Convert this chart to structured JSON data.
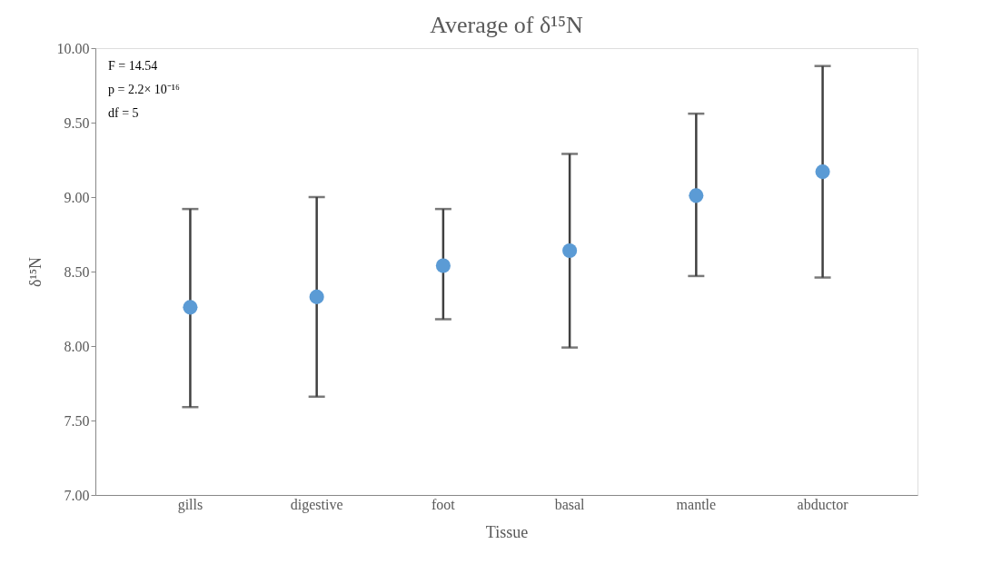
{
  "chart_data": {
    "type": "scatter",
    "title": "Average of δ¹⁵N",
    "xlabel": "Tissue",
    "ylabel": "δ¹⁵N",
    "categories": [
      "gills",
      "digestive",
      "foot",
      "basal",
      "mantle",
      "abductor"
    ],
    "series": [
      {
        "color": "#5b9bd5",
        "values": [
          8.26,
          8.33,
          8.54,
          8.64,
          9.01,
          9.17
        ],
        "errors": [
          [
            7.59,
            8.92
          ],
          [
            7.66,
            9.0
          ],
          [
            8.18,
            8.92
          ],
          [
            7.99,
            9.29
          ],
          [
            8.47,
            9.56
          ],
          [
            8.46,
            9.88
          ]
        ]
      }
    ],
    "ylim": [
      7.0,
      10.0
    ],
    "yticks": [
      {
        "value": 7.0,
        "label": "7.00"
      },
      {
        "value": 7.5,
        "label": "7.50"
      },
      {
        "value": 8.0,
        "label": "8.00"
      },
      {
        "value": 8.5,
        "label": "8.50"
      },
      {
        "value": 9.0,
        "label": "9.00"
      },
      {
        "value": 9.5,
        "label": "9.50"
      },
      {
        "value": 10.0,
        "label": "10.00"
      }
    ],
    "annotations": [
      "F = 14.54",
      "p = 2.2× 10⁻¹⁶",
      "df = 5"
    ],
    "marker": "circle",
    "grid": false
  }
}
